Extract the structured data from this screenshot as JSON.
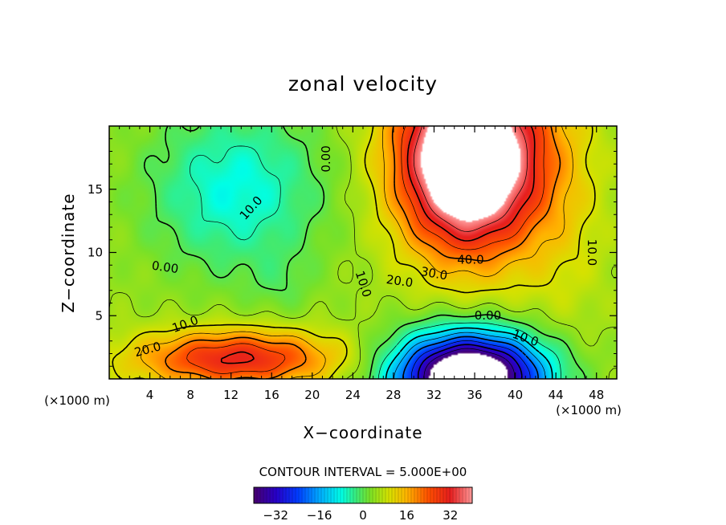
{
  "chart_data": {
    "type": "heatmap",
    "title": "zonal velocity",
    "xlabel": "X−coordinate",
    "ylabel": "Z−coordinate",
    "x_unit": "(×1000 m)",
    "xlim": [
      0,
      50
    ],
    "ylim": [
      0,
      20
    ],
    "x_ticks": [
      4,
      8,
      12,
      16,
      20,
      24,
      28,
      32,
      36,
      40,
      44,
      48
    ],
    "y_ticks": [
      5,
      10,
      15
    ],
    "contour_interval_text": "CONTOUR INTERVAL = 5.000E+00",
    "contour_interval": 5,
    "colorbar_ticks": [
      "−32",
      "−16",
      "0",
      "16",
      "32"
    ],
    "colorbar_tick_values": [
      -32,
      -16,
      0,
      16,
      32
    ],
    "colorbar_range": [
      -40,
      40
    ],
    "contour_labels": [
      {
        "text": "0.00",
        "x": 21.4,
        "z": 17.4,
        "rotate": -90
      },
      {
        "text": "10.0",
        "x": 14.0,
        "z": 13.5,
        "rotate": -48
      },
      {
        "text": "0.00",
        "x": 5.5,
        "z": 8.8,
        "rotate": 8
      },
      {
        "text": "10.0",
        "x": 7.5,
        "z": 4.3,
        "rotate": -20
      },
      {
        "text": "20.0",
        "x": 3.8,
        "z": 2.3,
        "rotate": -15
      },
      {
        "text": "10.0",
        "x": 25.0,
        "z": 7.5,
        "rotate": 72
      },
      {
        "text": "20.0",
        "x": 28.6,
        "z": 7.7,
        "rotate": 8
      },
      {
        "text": "30.0",
        "x": 32.0,
        "z": 8.3,
        "rotate": 10
      },
      {
        "text": "40.0",
        "x": 35.6,
        "z": 9.4,
        "rotate": 0
      },
      {
        "text": "0.00",
        "x": 37.3,
        "z": 5.0,
        "rotate": 0
      },
      {
        "text": "10.0",
        "x": 41.0,
        "z": 3.2,
        "rotate": 20
      },
      {
        "text": "10.0",
        "x": 47.5,
        "z": 10.0,
        "rotate": 90
      }
    ],
    "features": [
      {
        "name": "upper positive jet",
        "x": 36,
        "z": 15,
        "peak": 40,
        "note": "saturated white above 40"
      },
      {
        "name": "lower negative jet",
        "x": 36,
        "z": 1.5,
        "peak": -40,
        "note": "saturated white below -40"
      },
      {
        "name": "upper left negative region",
        "x": 13,
        "z": 15,
        "peak": -12
      },
      {
        "name": "lower left positive jet",
        "x": 13,
        "z": 2,
        "peak": 25
      }
    ]
  }
}
